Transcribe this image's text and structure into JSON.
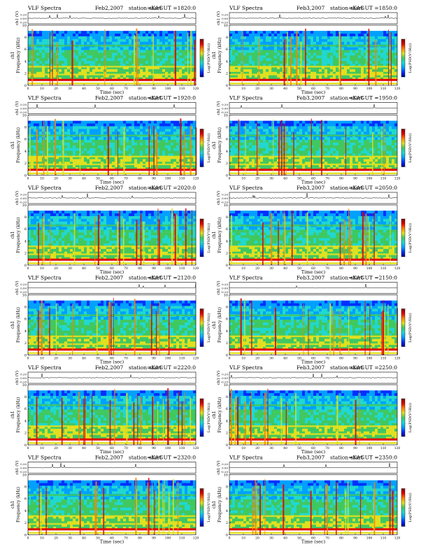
{
  "header": {
    "spectra_label": "VLF Spectra",
    "station_label": "station=KAG",
    "start_ut_prefix": "start UT ="
  },
  "axes": {
    "ch_label": "ch1 (V)",
    "ch_ticks": [
      "0.20",
      "0.00",
      "-0.20"
    ],
    "freq_label": "Frequency (kHz)",
    "freq_ticks": [
      "0",
      "2",
      "4",
      "6",
      "8",
      "10"
    ],
    "time_label": "Time (sec)",
    "time_ticks": [
      "0",
      "10",
      "20",
      "30",
      "40",
      "50",
      "60",
      "70",
      "80",
      "90",
      "100",
      "110",
      "120"
    ],
    "colorbar_label": "Log(PSD(V²/Hz))",
    "colorbar_ticks": [
      "-",
      "-",
      "-",
      "-"
    ]
  },
  "colors": {
    "colormap": [
      "#00007a",
      "#0030ff",
      "#00a0ff",
      "#20d8d0",
      "#40c860",
      "#e0e020",
      "#ff8000",
      "#e00000",
      "#800000"
    ]
  },
  "chart_data": [
    {
      "type": "heatmap",
      "date": "Feb2,2007",
      "start_ut": "1820:0",
      "ylabel": "Frequency (kHz)",
      "xlabel": "Time (sec)",
      "xlim": [
        0,
        120
      ],
      "ylim": [
        0,
        10
      ]
    },
    {
      "type": "heatmap",
      "date": "Feb3,2007",
      "start_ut": "1850:0",
      "ylabel": "Frequency (kHz)",
      "xlabel": "Time (sec)",
      "xlim": [
        0,
        120
      ],
      "ylim": [
        0,
        10
      ]
    },
    {
      "type": "heatmap",
      "date": "Feb2,2007",
      "start_ut": "1920:0",
      "ylabel": "Frequency (kHz)",
      "xlabel": "Time (sec)",
      "xlim": [
        0,
        120
      ],
      "ylim": [
        0,
        10
      ]
    },
    {
      "type": "heatmap",
      "date": "Feb3,2007",
      "start_ut": "1950:0",
      "ylabel": "Frequency (kHz)",
      "xlabel": "Time (sec)",
      "xlim": [
        0,
        120
      ],
      "ylim": [
        0,
        10
      ]
    },
    {
      "type": "heatmap",
      "date": "Feb2,2007",
      "start_ut": "2020:0",
      "ylabel": "Frequency (kHz)",
      "xlabel": "Time (sec)",
      "xlim": [
        0,
        120
      ],
      "ylim": [
        0,
        10
      ]
    },
    {
      "type": "heatmap",
      "date": "Feb3,2007",
      "start_ut": "2050:0",
      "ylabel": "Frequency (kHz)",
      "xlabel": "Time (sec)",
      "xlim": [
        0,
        120
      ],
      "ylim": [
        0,
        10
      ]
    },
    {
      "type": "heatmap",
      "date": "Feb2,2007",
      "start_ut": "2120:0",
      "ylabel": "Frequency (kHz)",
      "xlabel": "Time (sec)",
      "xlim": [
        0,
        120
      ],
      "ylim": [
        0,
        10
      ]
    },
    {
      "type": "heatmap",
      "date": "Feb3,2007",
      "start_ut": "2150:0",
      "ylabel": "Frequency (kHz)",
      "xlabel": "Time (sec)",
      "xlim": [
        0,
        120
      ],
      "ylim": [
        0,
        10
      ]
    },
    {
      "type": "heatmap",
      "date": "Feb2,2007",
      "start_ut": "2220:0",
      "ylabel": "Frequency (kHz)",
      "xlabel": "Time (sec)",
      "xlim": [
        0,
        120
      ],
      "ylim": [
        0,
        10
      ]
    },
    {
      "type": "heatmap",
      "date": "Feb3,2007",
      "start_ut": "2250:0",
      "ylabel": "Frequency (kHz)",
      "xlabel": "Time (sec)",
      "xlim": [
        0,
        120
      ],
      "ylim": [
        0,
        10
      ]
    },
    {
      "type": "heatmap",
      "date": "Feb2,2007",
      "start_ut": "2320:0",
      "ylabel": "Frequency (kHz)",
      "xlabel": "Time (sec)",
      "xlim": [
        0,
        120
      ],
      "ylim": [
        0,
        10
      ]
    },
    {
      "type": "heatmap",
      "date": "Feb3,2007",
      "start_ut": "2350:0",
      "ylabel": "Frequency (kHz)",
      "xlabel": "Time (sec)",
      "xlim": [
        0,
        120
      ],
      "ylim": [
        0,
        10
      ]
    }
  ]
}
